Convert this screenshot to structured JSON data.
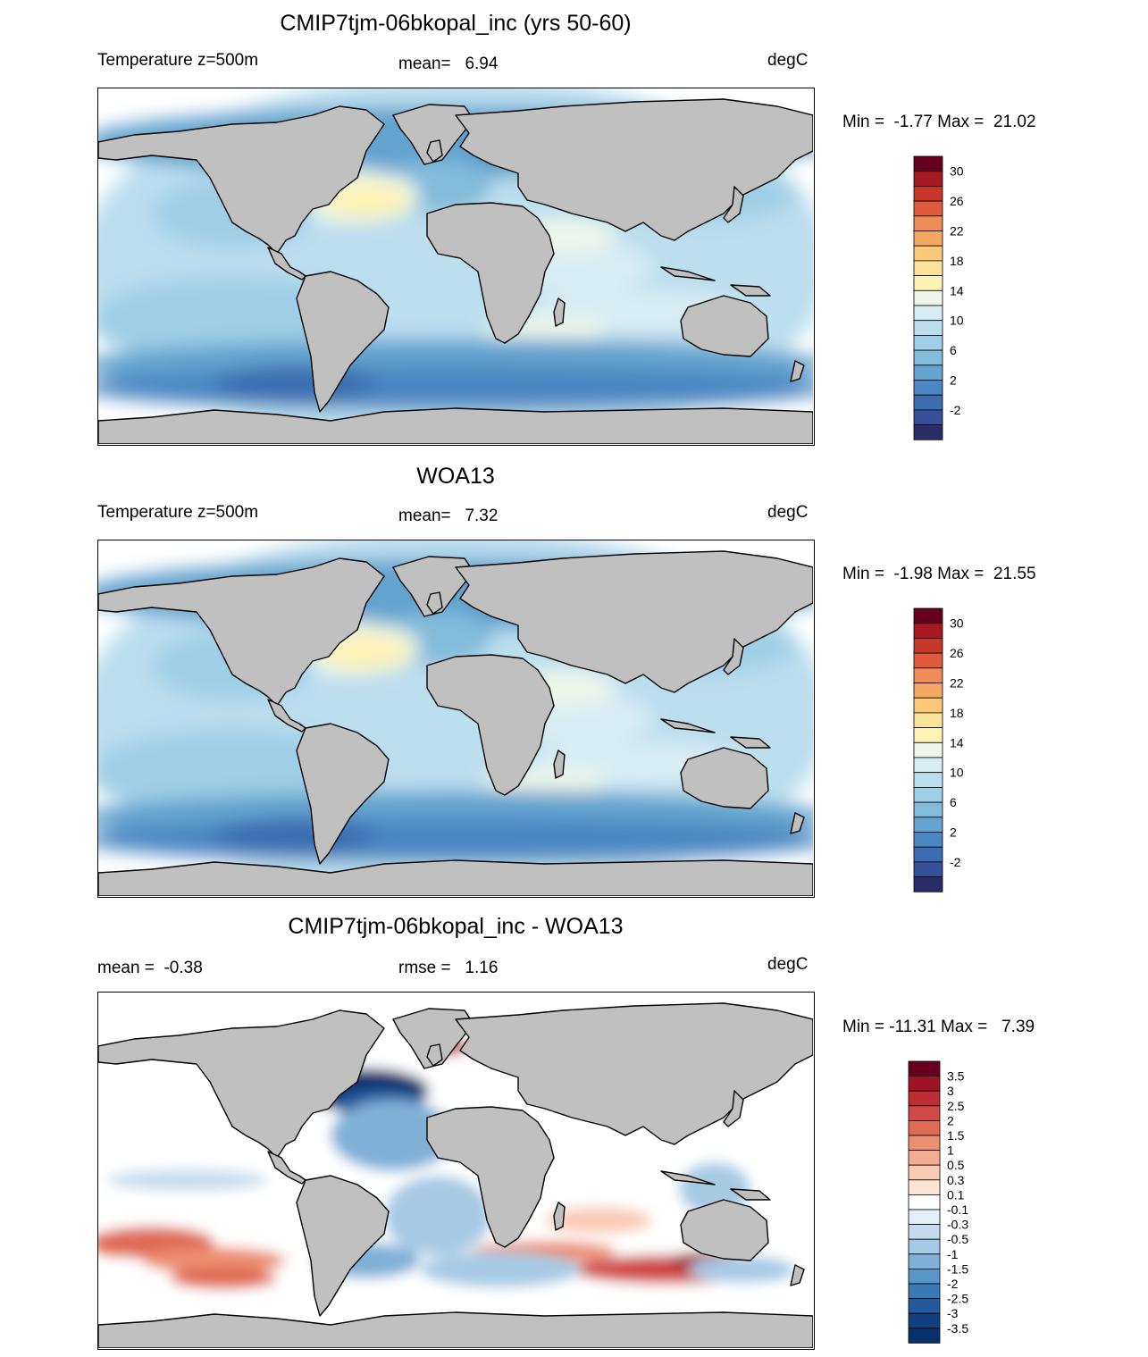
{
  "panels": [
    {
      "title": "CMIP7tjm-06bkopal_inc (yrs 50-60)",
      "left_label": "Temperature z=500m",
      "center_label": "mean=   6.94",
      "right_label": "degC",
      "minmax": "Min =  -1.77 Max =  21.02",
      "colorbar_labels": [
        "30",
        "26",
        "22",
        "18",
        "14",
        "10",
        "6",
        "2",
        "-2"
      ],
      "colorbar_colors": [
        "#67001f",
        "#a51a20",
        "#c8372a",
        "#e05a3c",
        "#f08c57",
        "#f7a860",
        "#fbc87a",
        "#fde39a",
        "#fdf3b5",
        "#eef6ea",
        "#d8ecf3",
        "#bcdfee",
        "#9fcfe6",
        "#82bbdb",
        "#63a3cf",
        "#4b87c2",
        "#3b6db0",
        "#34519a",
        "#2d2c6a"
      ],
      "map_style": "temperature"
    },
    {
      "title": "WOA13",
      "left_label": "Temperature z=500m",
      "center_label": "mean=   7.32",
      "right_label": "degC",
      "minmax": "Min =  -1.98 Max =  21.55",
      "colorbar_labels": [
        "30",
        "26",
        "22",
        "18",
        "14",
        "10",
        "6",
        "2",
        "-2"
      ],
      "colorbar_colors": [
        "#67001f",
        "#a51a20",
        "#c8372a",
        "#e05a3c",
        "#f08c57",
        "#f7a860",
        "#fbc87a",
        "#fde39a",
        "#fdf3b5",
        "#eef6ea",
        "#d8ecf3",
        "#bcdfee",
        "#9fcfe6",
        "#82bbdb",
        "#63a3cf",
        "#4b87c2",
        "#3b6db0",
        "#34519a",
        "#2d2c6a"
      ],
      "map_style": "temperature"
    },
    {
      "title": "CMIP7tjm-06bkopal_inc - WOA13",
      "left_label": "mean =  -0.38",
      "center_label": "rmse =   1.16",
      "right_label": "degC",
      "minmax": "Min = -11.31 Max =   7.39",
      "colorbar_labels": [
        "3.5",
        "3",
        "2.5",
        "2",
        "1.5",
        "1",
        "0.5",
        "0.3",
        "0.1",
        "-0.1",
        "-0.3",
        "-0.5",
        "-1",
        "-1.5",
        "-2",
        "-2.5",
        "-3",
        "-3.5"
      ],
      "colorbar_colors": [
        "#67001f",
        "#a11226",
        "#bf2d34",
        "#d14a45",
        "#e06b55",
        "#ec8e70",
        "#f4ad90",
        "#f9cbb3",
        "#fde5d6",
        "#ffffff",
        "#e3eef7",
        "#c6dcee",
        "#a6cae4",
        "#7fb1d8",
        "#5895c8",
        "#3a78b6",
        "#24599c",
        "#123f7d",
        "#08306b"
      ],
      "map_style": "anomaly"
    }
  ],
  "land_color": "#c0c0c0"
}
